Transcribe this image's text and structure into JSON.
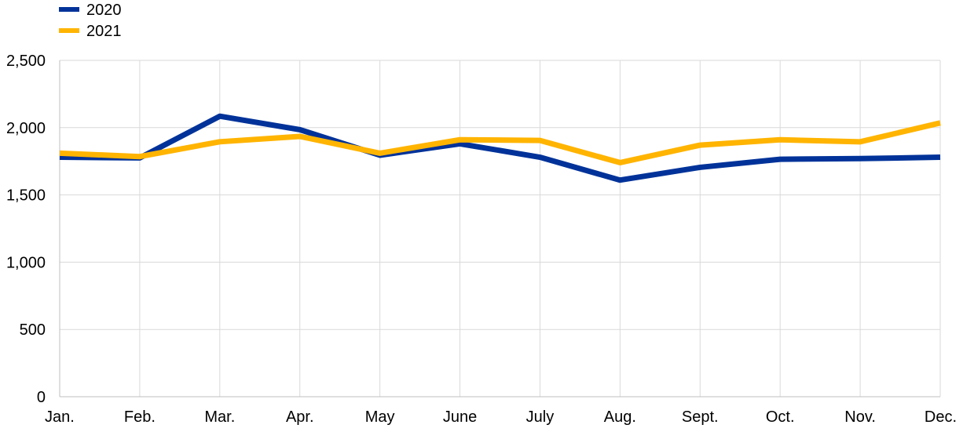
{
  "chart_data": {
    "type": "line",
    "categories": [
      "Jan.",
      "Feb.",
      "Mar.",
      "Apr.",
      "May",
      "June",
      "July",
      "Aug.",
      "Sept.",
      "Oct.",
      "Nov.",
      "Dec."
    ],
    "series": [
      {
        "name": "2020",
        "color": "#003299",
        "values": [
          1780,
          1775,
          2085,
          1985,
          1795,
          1880,
          1780,
          1610,
          1705,
          1765,
          1770,
          1780
        ]
      },
      {
        "name": "2021",
        "color": "#FFB400",
        "values": [
          1810,
          1785,
          1895,
          1935,
          1810,
          1910,
          1905,
          1740,
          1870,
          1910,
          1895,
          2035
        ]
      }
    ],
    "yticks": [
      0,
      500,
      1000,
      1500,
      2000,
      2500
    ],
    "ytick_labels": [
      "0",
      "500",
      "1,000",
      "1,500",
      "2,000",
      "2,500"
    ],
    "ylim": [
      0,
      2500
    ],
    "grid": true,
    "legend_position": "top-left"
  }
}
